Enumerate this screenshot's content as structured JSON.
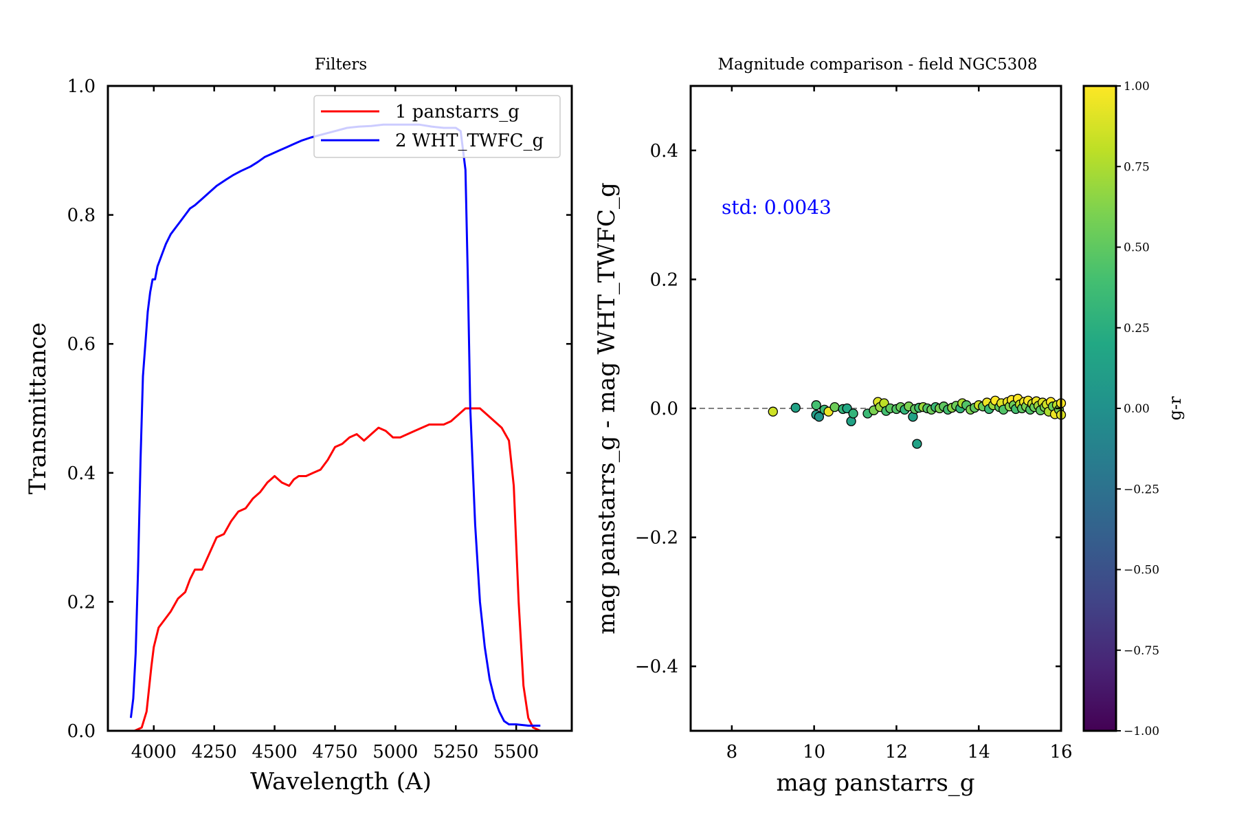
{
  "chart_data": [
    {
      "type": "line",
      "title": "Filters",
      "xlabel": "Wavelength (A)",
      "ylabel": "Transmittance",
      "xlim": [
        3810,
        5730
      ],
      "ylim": [
        0,
        1
      ],
      "xticks": [
        4000,
        4250,
        4500,
        4750,
        5000,
        5250,
        5500
      ],
      "xtick_labels": [
        "4000",
        "4250",
        "4500",
        "4750",
        "5000",
        "5250",
        "5500"
      ],
      "yticks": [
        0,
        0.2,
        0.4,
        0.6,
        0.8,
        1.0
      ],
      "ytick_labels": [
        "0.0",
        "0.2",
        "0.4",
        "0.6",
        "0.8",
        "1.0"
      ],
      "grid": false,
      "legend": "top-right",
      "series": [
        {
          "name": "1 panstarrs_g",
          "color": "#ff0000",
          "x": [
            3920,
            3950,
            3970,
            3990,
            4000,
            4020,
            4040,
            4070,
            4100,
            4130,
            4150,
            4170,
            4200,
            4230,
            4260,
            4290,
            4320,
            4350,
            4380,
            4410,
            4440,
            4470,
            4500,
            4530,
            4560,
            4580,
            4600,
            4630,
            4660,
            4690,
            4720,
            4750,
            4780,
            4810,
            4840,
            4870,
            4900,
            4930,
            4960,
            4990,
            5020,
            5050,
            5080,
            5110,
            5140,
            5170,
            5200,
            5230,
            5260,
            5290,
            5320,
            5350,
            5380,
            5410,
            5440,
            5470,
            5490,
            5510,
            5530,
            5550,
            5570,
            5600,
            5620
          ],
          "y": [
            0.0,
            0.005,
            0.03,
            0.1,
            0.13,
            0.16,
            0.17,
            0.185,
            0.205,
            0.215,
            0.235,
            0.25,
            0.25,
            0.275,
            0.3,
            0.305,
            0.325,
            0.34,
            0.345,
            0.36,
            0.37,
            0.385,
            0.395,
            0.385,
            0.38,
            0.39,
            0.395,
            0.395,
            0.4,
            0.405,
            0.42,
            0.44,
            0.445,
            0.455,
            0.46,
            0.45,
            0.46,
            0.47,
            0.465,
            0.455,
            0.455,
            0.46,
            0.465,
            0.47,
            0.475,
            0.475,
            0.475,
            0.48,
            0.49,
            0.5,
            0.5,
            0.5,
            0.49,
            0.48,
            0.47,
            0.45,
            0.38,
            0.2,
            0.07,
            0.02,
            0.005,
            0.0,
            0.0
          ],
          "note": ""
        },
        {
          "name": "2 WHT_TWFC_g",
          "color": "#0000ff",
          "x": [
            3905,
            3915,
            3925,
            3935,
            3945,
            3955,
            3965,
            3975,
            3985,
            3995,
            4005,
            4015,
            4025,
            4035,
            4050,
            4070,
            4090,
            4110,
            4130,
            4150,
            4170,
            4200,
            4230,
            4260,
            4300,
            4330,
            4360,
            4400,
            4430,
            4460,
            4490,
            4520,
            4550,
            4580,
            4610,
            4650,
            4700,
            4750,
            4800,
            4850,
            4900,
            4950,
            5000,
            5050,
            5100,
            5150,
            5200,
            5250,
            5270,
            5280,
            5290,
            5300,
            5310,
            5330,
            5350,
            5370,
            5390,
            5410,
            5430,
            5450,
            5470,
            5500,
            5550,
            5600
          ],
          "y": [
            0.02,
            0.05,
            0.12,
            0.25,
            0.42,
            0.55,
            0.6,
            0.65,
            0.68,
            0.7,
            0.7,
            0.72,
            0.73,
            0.74,
            0.755,
            0.77,
            0.78,
            0.79,
            0.8,
            0.81,
            0.815,
            0.825,
            0.835,
            0.845,
            0.855,
            0.862,
            0.868,
            0.875,
            0.882,
            0.89,
            0.895,
            0.9,
            0.905,
            0.91,
            0.915,
            0.92,
            0.925,
            0.93,
            0.935,
            0.937,
            0.938,
            0.94,
            0.94,
            0.94,
            0.94,
            0.937,
            0.935,
            0.935,
            0.93,
            0.9,
            0.87,
            0.7,
            0.5,
            0.32,
            0.2,
            0.13,
            0.08,
            0.05,
            0.03,
            0.015,
            0.01,
            0.01,
            0.008,
            0.008
          ]
        }
      ]
    },
    {
      "type": "scatter",
      "title": "Magnitude comparison - field NGC5308",
      "xlabel": "mag panstarrs_g",
      "ylabel": "mag panstarrs_g - mag WHT_TWFC_g",
      "xlim": [
        7,
        16
      ],
      "ylim": [
        -0.5,
        0.5
      ],
      "xticks": [
        8,
        10,
        12,
        14,
        16
      ],
      "xtick_labels": [
        "8",
        "10",
        "12",
        "14",
        "16"
      ],
      "yticks": [
        -0.4,
        -0.2,
        0.0,
        0.2,
        0.4
      ],
      "ytick_labels": [
        "−0.4",
        "−0.2",
        "0.0",
        "0.2",
        "0.4"
      ],
      "grid": false,
      "annotation": "std: 0.0043",
      "annotation_color": "#0000ff",
      "reference_line": {
        "y": 0.0,
        "style": "dashed",
        "color": "#808080"
      },
      "colorbar": {
        "label": "g-r",
        "range": [
          -1.0,
          1.0
        ],
        "colormap": "viridis",
        "ticks": [
          -1.0,
          -0.75,
          -0.5,
          -0.25,
          0.0,
          0.25,
          0.5,
          0.75,
          1.0
        ],
        "tick_labels": [
          "−1.00",
          "−0.75",
          "−0.50",
          "−0.25",
          "0.00",
          "0.25",
          "0.50",
          "0.75",
          "1.00"
        ]
      },
      "points": [
        {
          "x": 9.0,
          "y": -0.005,
          "c": 0.85
        },
        {
          "x": 9.55,
          "y": 0.001,
          "c": 0.15
        },
        {
          "x": 10.05,
          "y": 0.005,
          "c": 0.4
        },
        {
          "x": 10.05,
          "y": -0.01,
          "c": 0.1
        },
        {
          "x": 10.12,
          "y": -0.013,
          "c": 0.05
        },
        {
          "x": 10.25,
          "y": -0.002,
          "c": 0.35
        },
        {
          "x": 10.35,
          "y": -0.005,
          "c": 0.95
        },
        {
          "x": 10.5,
          "y": 0.002,
          "c": 0.55
        },
        {
          "x": 10.7,
          "y": -0.001,
          "c": 0.3
        },
        {
          "x": 10.8,
          "y": 0.0,
          "c": 0.2
        },
        {
          "x": 10.9,
          "y": -0.02,
          "c": 0.15
        },
        {
          "x": 10.95,
          "y": -0.008,
          "c": 0.3
        },
        {
          "x": 11.3,
          "y": -0.008,
          "c": 0.35
        },
        {
          "x": 11.45,
          "y": -0.003,
          "c": 0.6
        },
        {
          "x": 11.55,
          "y": 0.01,
          "c": 0.9
        },
        {
          "x": 11.6,
          "y": 0.002,
          "c": 0.7
        },
        {
          "x": 11.7,
          "y": 0.008,
          "c": 0.8
        },
        {
          "x": 11.75,
          "y": -0.004,
          "c": 0.4
        },
        {
          "x": 11.85,
          "y": 0.0,
          "c": 0.5
        },
        {
          "x": 12.0,
          "y": -0.001,
          "c": 0.45
        },
        {
          "x": 12.1,
          "y": 0.002,
          "c": 0.55
        },
        {
          "x": 12.2,
          "y": -0.002,
          "c": 0.3
        },
        {
          "x": 12.3,
          "y": 0.003,
          "c": 0.6
        },
        {
          "x": 12.4,
          "y": -0.013,
          "c": 0.15
        },
        {
          "x": 12.45,
          "y": -0.001,
          "c": 0.5
        },
        {
          "x": 12.5,
          "y": -0.055,
          "c": 0.15
        },
        {
          "x": 12.55,
          "y": 0.001,
          "c": 0.4
        },
        {
          "x": 12.65,
          "y": 0.002,
          "c": 0.7
        },
        {
          "x": 12.75,
          "y": 0.0,
          "c": 0.45
        },
        {
          "x": 12.85,
          "y": -0.002,
          "c": 0.55
        },
        {
          "x": 12.95,
          "y": 0.002,
          "c": 0.35
        },
        {
          "x": 13.05,
          "y": 0.0,
          "c": 0.6
        },
        {
          "x": 13.15,
          "y": 0.003,
          "c": 0.5
        },
        {
          "x": 13.25,
          "y": -0.002,
          "c": 0.4
        },
        {
          "x": 13.35,
          "y": 0.001,
          "c": 0.65
        },
        {
          "x": 13.45,
          "y": 0.004,
          "c": 0.55
        },
        {
          "x": 13.55,
          "y": 0.0,
          "c": 0.3
        },
        {
          "x": 13.6,
          "y": 0.008,
          "c": 0.75
        },
        {
          "x": 13.7,
          "y": 0.005,
          "c": 0.45
        },
        {
          "x": 13.8,
          "y": -0.002,
          "c": 0.6
        },
        {
          "x": 13.9,
          "y": 0.001,
          "c": 0.5
        },
        {
          "x": 14.0,
          "y": 0.005,
          "c": 0.85
        },
        {
          "x": 14.1,
          "y": 0.003,
          "c": 0.55
        },
        {
          "x": 14.2,
          "y": 0.009,
          "c": 0.95
        },
        {
          "x": 14.25,
          "y": -0.001,
          "c": 0.35
        },
        {
          "x": 14.35,
          "y": 0.005,
          "c": 0.7
        },
        {
          "x": 14.4,
          "y": 0.012,
          "c": 1.0
        },
        {
          "x": 14.5,
          "y": 0.002,
          "c": 0.5
        },
        {
          "x": 14.55,
          "y": 0.008,
          "c": 0.9
        },
        {
          "x": 14.6,
          "y": -0.002,
          "c": 0.45
        },
        {
          "x": 14.7,
          "y": 0.01,
          "c": 0.95
        },
        {
          "x": 14.75,
          "y": 0.003,
          "c": 0.65
        },
        {
          "x": 14.8,
          "y": 0.013,
          "c": 1.0
        },
        {
          "x": 14.85,
          "y": 0.005,
          "c": 0.55
        },
        {
          "x": 14.9,
          "y": -0.001,
          "c": 0.4
        },
        {
          "x": 14.95,
          "y": 0.015,
          "c": 1.0
        },
        {
          "x": 15.0,
          "y": 0.006,
          "c": 0.8
        },
        {
          "x": 15.05,
          "y": 0.0,
          "c": 0.5
        },
        {
          "x": 15.1,
          "y": 0.01,
          "c": 0.95
        },
        {
          "x": 15.15,
          "y": 0.003,
          "c": 0.6
        },
        {
          "x": 15.2,
          "y": 0.012,
          "c": 1.0
        },
        {
          "x": 15.25,
          "y": -0.002,
          "c": 0.45
        },
        {
          "x": 15.3,
          "y": 0.007,
          "c": 0.85
        },
        {
          "x": 15.35,
          "y": 0.002,
          "c": 0.55
        },
        {
          "x": 15.4,
          "y": 0.011,
          "c": 0.95
        },
        {
          "x": 15.45,
          "y": 0.004,
          "c": 0.7
        },
        {
          "x": 15.5,
          "y": -0.003,
          "c": 0.5
        },
        {
          "x": 15.55,
          "y": 0.009,
          "c": 0.9
        },
        {
          "x": 15.6,
          "y": 0.002,
          "c": 0.6
        },
        {
          "x": 15.65,
          "y": 0.006,
          "c": 0.85
        },
        {
          "x": 15.7,
          "y": -0.005,
          "c": 0.75
        },
        {
          "x": 15.75,
          "y": 0.01,
          "c": 1.0
        },
        {
          "x": 15.8,
          "y": 0.003,
          "c": 0.55
        },
        {
          "x": 15.85,
          "y": -0.009,
          "c": 0.95
        },
        {
          "x": 15.9,
          "y": 0.005,
          "c": 0.8
        },
        {
          "x": 15.95,
          "y": -0.002,
          "c": 0.6
        },
        {
          "x": 16.0,
          "y": -0.01,
          "c": 0.9
        },
        {
          "x": 16.0,
          "y": 0.008,
          "c": 1.0
        }
      ]
    }
  ]
}
